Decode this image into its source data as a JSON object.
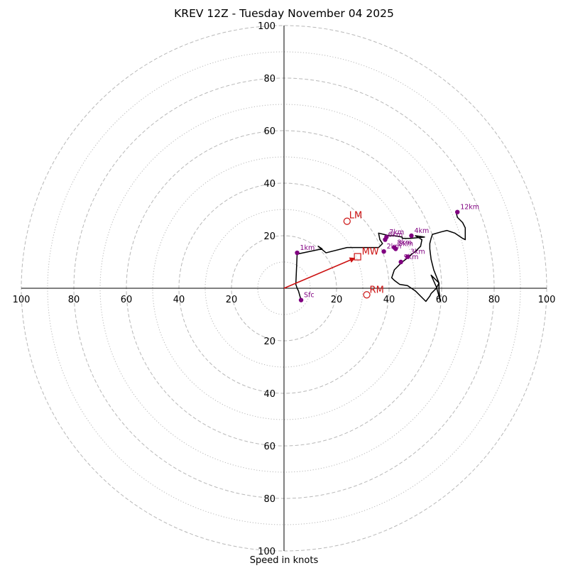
{
  "title": "KREV 12Z - Tuesday November 04 2025",
  "xlabel": "Speed in knots",
  "chart_data": {
    "type": "hodograph",
    "title": "KREV 12Z - Tuesday November 04 2025",
    "xlabel": "Speed in knots",
    "ring_max": 100,
    "dashed_rings": [
      20,
      40,
      60,
      80,
      100
    ],
    "dotted_rings": [
      10,
      30,
      50,
      70,
      90
    ],
    "tick_labels": [
      "20",
      "40",
      "60",
      "80",
      "100"
    ],
    "hodograph_trace": [
      [
        6.5,
        -4.5
      ],
      [
        5.5,
        -1
      ],
      [
        5,
        0
      ],
      [
        4.5,
        1.5
      ],
      [
        5,
        13
      ],
      [
        14.5,
        15
      ],
      [
        13,
        16
      ],
      [
        16,
        13.5
      ],
      [
        24,
        15.5
      ],
      [
        31.5,
        15.5
      ],
      [
        36,
        15.5
      ],
      [
        37.5,
        17
      ],
      [
        36.5,
        18.5
      ],
      [
        36,
        21
      ],
      [
        38,
        20.5
      ],
      [
        40,
        20
      ],
      [
        42,
        20
      ],
      [
        45,
        19.5
      ],
      [
        45,
        19
      ],
      [
        48,
        19
      ],
      [
        53.5,
        19.5
      ],
      [
        50,
        20
      ],
      [
        52.5,
        18.5
      ],
      [
        52,
        16
      ],
      [
        50,
        14
      ],
      [
        48,
        12.5
      ],
      [
        47,
        11.5
      ],
      [
        45,
        10
      ],
      [
        44,
        9
      ],
      [
        43,
        8
      ],
      [
        42,
        7
      ],
      [
        41.5,
        5.5
      ],
      [
        41,
        4
      ],
      [
        42,
        3
      ],
      [
        44,
        1.5
      ],
      [
        47,
        1
      ],
      [
        48.5,
        0
      ],
      [
        50,
        -1
      ],
      [
        52,
        -3
      ],
      [
        54,
        -5
      ],
      [
        55.5,
        -3
      ],
      [
        56,
        -2
      ],
      [
        57,
        -1
      ],
      [
        58,
        0
      ],
      [
        59,
        2
      ],
      [
        57,
        4
      ],
      [
        56,
        5
      ],
      [
        58,
        0.5
      ],
      [
        59,
        -3
      ],
      [
        59.5,
        -5
      ],
      [
        59,
        -1
      ],
      [
        59,
        2
      ],
      [
        57,
        7
      ],
      [
        56,
        11
      ],
      [
        55.5,
        15
      ],
      [
        55.5,
        17
      ],
      [
        56,
        19
      ],
      [
        56.5,
        20.5
      ],
      [
        60,
        21.5
      ],
      [
        62,
        22
      ],
      [
        65,
        21
      ],
      [
        68,
        19
      ],
      [
        69,
        18.5
      ],
      [
        69,
        20
      ],
      [
        69,
        23
      ],
      [
        68,
        25
      ],
      [
        66,
        27
      ],
      [
        65.5,
        29
      ]
    ],
    "height_markers": [
      {
        "label": "Sfc",
        "u": 6.5,
        "v": -4.5
      },
      {
        "label": "1km",
        "u": 5,
        "v": 13.5
      },
      {
        "label": "2km",
        "u": 38,
        "v": 14
      },
      {
        "label": "3km",
        "u": 47,
        "v": 12
      },
      {
        "label": "4km",
        "u": 48.5,
        "v": 20
      },
      {
        "label": "5km",
        "u": 42.5,
        "v": 15
      },
      {
        "label": "6km",
        "u": 38.5,
        "v": 18.5
      },
      {
        "label": "7km",
        "u": 39,
        "v": 19.5
      },
      {
        "label": "8km",
        "u": 42,
        "v": 15.5
      },
      {
        "label": "9km",
        "u": 44.5,
        "v": 10
      },
      {
        "label": "12km",
        "u": 66,
        "v": 29
      }
    ],
    "storm_motion": {
      "mean_wind": {
        "label": "MW",
        "u": 28,
        "v": 12
      },
      "left_mover": {
        "label": "LM",
        "u": 24,
        "v": 25.5
      },
      "right_mover": {
        "label": "RM",
        "u": 31.5,
        "v": -2.5
      }
    },
    "colors": {
      "trace": "#000000",
      "markers": "#800080",
      "storm_motion": "#cc1111",
      "rings": "#b8b8b8"
    }
  }
}
